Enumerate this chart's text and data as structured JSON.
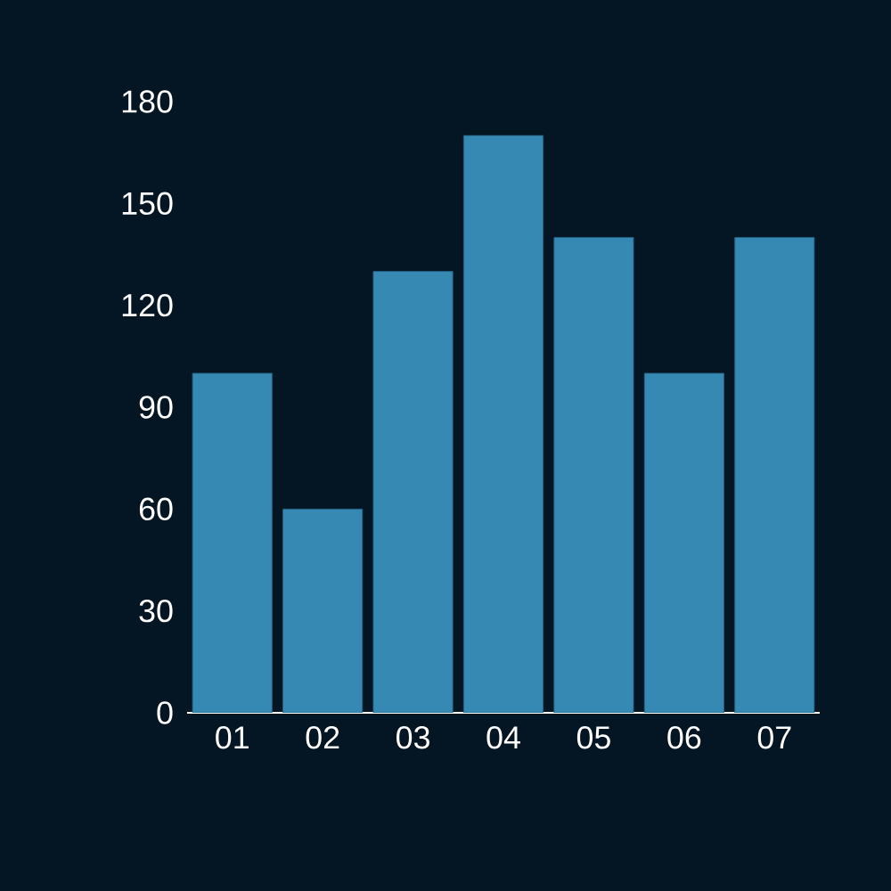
{
  "chart_data": {
    "type": "bar",
    "categories": [
      "01",
      "02",
      "03",
      "04",
      "05",
      "06",
      "07"
    ],
    "values": [
      100,
      60,
      130,
      170,
      140,
      100,
      140
    ],
    "color": "#3589b3",
    "ylim": [
      0,
      180
    ],
    "yticks": [
      0,
      30,
      60,
      90,
      120,
      150,
      180
    ]
  }
}
